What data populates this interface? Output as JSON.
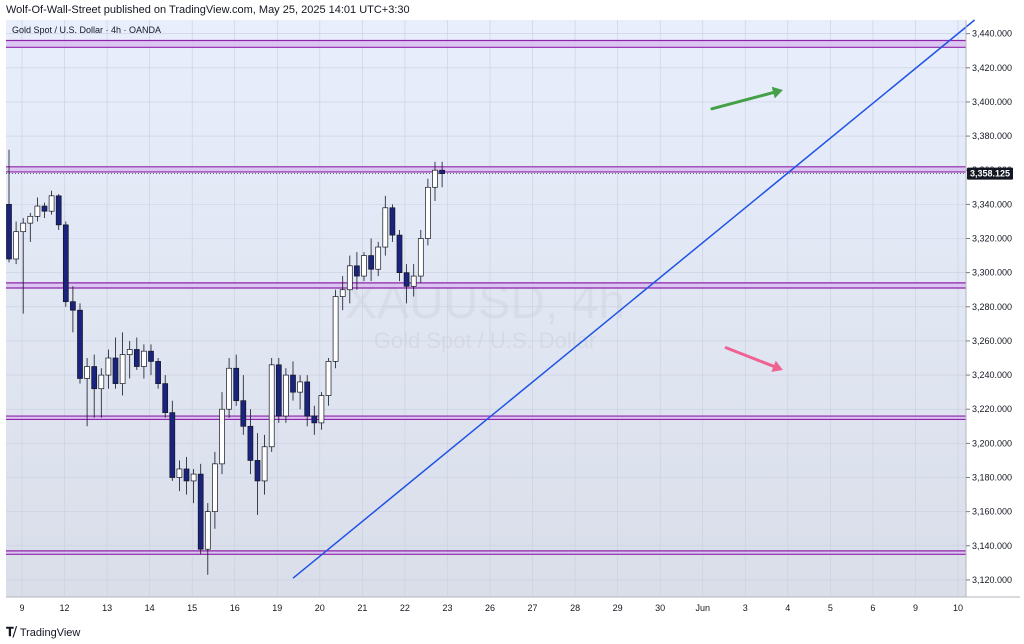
{
  "header": {
    "publish_info": "Wolf-Of-Wall-Street published on TradingView.com, May 25, 2025 14:01 UTC+3:30"
  },
  "footer": {
    "brand": "TradingView",
    "logo_icon": "tradingview-logo-icon"
  },
  "colors": {
    "bg_top": "#e8eefc",
    "bg_bottom": "#d9dee9",
    "zone_fill": "#d8bff0",
    "zone_line": "#8e24aa",
    "trendline": "#1e53e5",
    "candle_up": "#ffffff",
    "candle_down": "#1a237e",
    "arrow_green": "#43a047",
    "arrow_pink": "#f06292"
  },
  "chart_data": {
    "type": "candlestick",
    "symbol_label": "Gold Spot / U.S. Dollar · 4h · OANDA",
    "watermark_symbol": "XAUUSD, 4h",
    "watermark_name": "Gold Spot / U.S. Dollar",
    "last_price": "3,358.125",
    "y_axis": {
      "range": [
        3110,
        3448
      ],
      "ticks": [
        "3,120.000",
        "3,140.000",
        "3,160.000",
        "3,180.000",
        "3,200.000",
        "3,220.000",
        "3,240.000",
        "3,260.000",
        "3,280.000",
        "3,300.000",
        "3,320.000",
        "3,340.000",
        "3,360.000",
        "3,380.000",
        "3,400.000",
        "3,420.000",
        "3,440.000"
      ],
      "tick_values": [
        3120,
        3140,
        3160,
        3180,
        3200,
        3220,
        3240,
        3260,
        3280,
        3300,
        3320,
        3340,
        3360,
        3380,
        3400,
        3420,
        3440
      ]
    },
    "x_axis": {
      "labels": [
        "9",
        "12",
        "13",
        "14",
        "15",
        "16",
        "19",
        "20",
        "21",
        "22",
        "23",
        "26",
        "27",
        "28",
        "29",
        "30",
        "Jun",
        "3",
        "4",
        "5",
        "6",
        "9",
        "10"
      ]
    },
    "zones": [
      {
        "low": 3432,
        "high": 3436
      },
      {
        "low": 3359,
        "high": 3362
      },
      {
        "low": 3291,
        "high": 3294
      },
      {
        "low": 3214,
        "high": 3216
      },
      {
        "low": 3135,
        "high": 3137
      }
    ],
    "trendline": {
      "start": {
        "bar": 40,
        "price": 3121
      },
      "end": {
        "bar": 136,
        "price": 3448
      }
    },
    "arrows": [
      {
        "color": "green",
        "from": {
          "bar": 99,
          "price": 3396
        },
        "to": {
          "bar": 109,
          "price": 3407
        }
      },
      {
        "color": "pink",
        "from": {
          "bar": 101,
          "price": 3256
        },
        "to": {
          "bar": 109,
          "price": 3243
        }
      }
    ],
    "candles": [
      [
        3340,
        3372,
        3306,
        3308
      ],
      [
        3308,
        3330,
        3305,
        3324
      ],
      [
        3324,
        3332,
        3276,
        3329
      ],
      [
        3329,
        3335,
        3318,
        3333
      ],
      [
        3333,
        3344,
        3330,
        3339
      ],
      [
        3339,
        3341,
        3332,
        3336
      ],
      [
        3336,
        3348,
        3334,
        3345
      ],
      [
        3345,
        3346,
        3325,
        3328
      ],
      [
        3328,
        3330,
        3280,
        3283
      ],
      [
        3283,
        3292,
        3265,
        3278
      ],
      [
        3278,
        3282,
        3235,
        3238
      ],
      [
        3238,
        3250,
        3210,
        3245
      ],
      [
        3245,
        3252,
        3215,
        3232
      ],
      [
        3232,
        3244,
        3215,
        3240
      ],
      [
        3240,
        3255,
        3232,
        3250
      ],
      [
        3250,
        3262,
        3232,
        3235
      ],
      [
        3235,
        3265,
        3228,
        3252
      ],
      [
        3252,
        3260,
        3238,
        3255
      ],
      [
        3255,
        3262,
        3243,
        3245
      ],
      [
        3245,
        3258,
        3238,
        3254
      ],
      [
        3254,
        3258,
        3240,
        3248
      ],
      [
        3248,
        3250,
        3232,
        3235
      ],
      [
        3235,
        3240,
        3215,
        3218
      ],
      [
        3218,
        3225,
        3178,
        3180
      ],
      [
        3180,
        3190,
        3172,
        3185
      ],
      [
        3185,
        3192,
        3170,
        3178
      ],
      [
        3178,
        3185,
        3165,
        3182
      ],
      [
        3182,
        3188,
        3135,
        3138
      ],
      [
        3138,
        3165,
        3123,
        3160
      ],
      [
        3160,
        3195,
        3150,
        3188
      ],
      [
        3188,
        3230,
        3182,
        3220
      ],
      [
        3220,
        3250,
        3215,
        3244
      ],
      [
        3244,
        3252,
        3222,
        3225
      ],
      [
        3225,
        3240,
        3205,
        3210
      ],
      [
        3210,
        3220,
        3182,
        3190
      ],
      [
        3190,
        3206,
        3158,
        3178
      ],
      [
        3178,
        3205,
        3170,
        3198
      ],
      [
        3198,
        3250,
        3195,
        3246
      ],
      [
        3246,
        3250,
        3212,
        3216
      ],
      [
        3216,
        3244,
        3212,
        3240
      ],
      [
        3240,
        3248,
        3225,
        3230
      ],
      [
        3230,
        3240,
        3220,
        3236
      ],
      [
        3236,
        3240,
        3210,
        3216
      ],
      [
        3216,
        3222,
        3205,
        3212
      ],
      [
        3212,
        3230,
        3208,
        3228
      ],
      [
        3228,
        3250,
        3222,
        3248
      ],
      [
        3248,
        3290,
        3244,
        3286
      ],
      [
        3286,
        3298,
        3278,
        3290
      ],
      [
        3290,
        3310,
        3282,
        3304
      ],
      [
        3304,
        3312,
        3290,
        3298
      ],
      [
        3298,
        3312,
        3295,
        3310
      ],
      [
        3310,
        3320,
        3295,
        3302
      ],
      [
        3302,
        3318,
        3298,
        3315
      ],
      [
        3315,
        3345,
        3310,
        3338
      ],
      [
        3338,
        3340,
        3318,
        3322
      ],
      [
        3322,
        3325,
        3295,
        3300
      ],
      [
        3300,
        3305,
        3282,
        3292
      ],
      [
        3292,
        3305,
        3286,
        3298
      ],
      [
        3298,
        3325,
        3294,
        3320
      ],
      [
        3320,
        3355,
        3316,
        3350
      ],
      [
        3350,
        3365,
        3342,
        3360
      ],
      [
        3360,
        3365,
        3350,
        3358
      ]
    ]
  }
}
